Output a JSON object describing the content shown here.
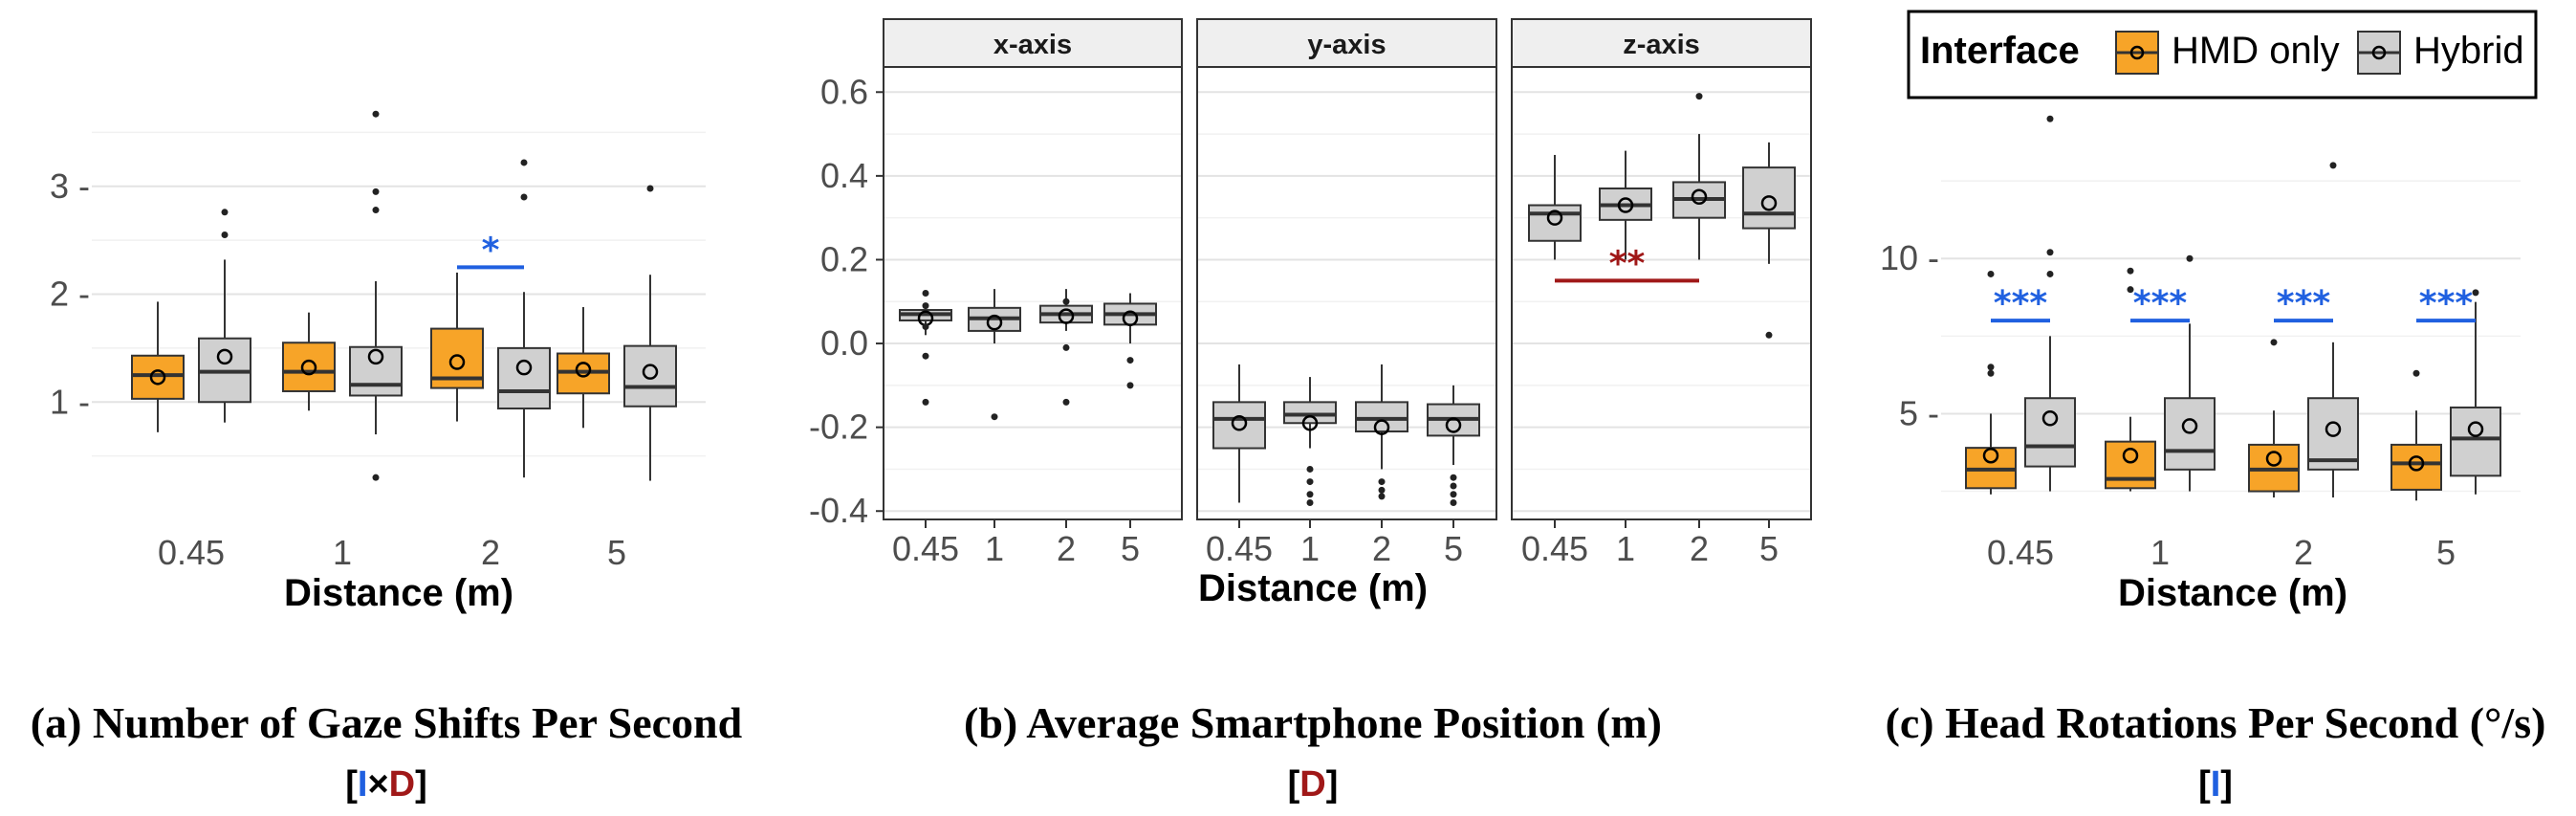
{
  "colors": {
    "hmd_only": "#f7a428",
    "hybrid": "#d0d0d0",
    "box_stroke": "#333333",
    "grid_major": "#e3e3e3",
    "grid_minor": "#f1f1f1",
    "sig_blue": "#2060e0",
    "sig_red": "#a01818"
  },
  "legend": {
    "title": "Interface",
    "items": [
      {
        "label": "HMD only",
        "key": "hmd_only"
      },
      {
        "label": "Hybrid",
        "key": "hybrid"
      }
    ]
  },
  "chart_data": [
    {
      "type": "box",
      "xlabel": "Distance (m)",
      "ylabel": "",
      "categories": [
        "0.45",
        "1",
        "2",
        "5"
      ],
      "ylim": [
        0.0,
        4.0
      ],
      "yticks": [
        1,
        2,
        3
      ],
      "grid": true,
      "caption": "(a) Number of Gaze Shifts Per Second",
      "subcaption": [
        {
          "text": "[",
          "color": "#000000"
        },
        {
          "text": "I",
          "color": "#2060e0"
        },
        {
          "text": "×",
          "color": "#000000"
        },
        {
          "text": "D",
          "color": "#a01818"
        },
        {
          "text": "]",
          "color": "#000000"
        }
      ],
      "series": [
        {
          "name": "HMD only",
          "boxes": [
            {
              "wl": 0.72,
              "q1": 1.03,
              "med": 1.25,
              "q3": 1.43,
              "wh": 1.93,
              "mean": 1.23,
              "out": []
            },
            {
              "wl": 0.92,
              "q1": 1.1,
              "med": 1.28,
              "q3": 1.55,
              "wh": 1.83,
              "mean": 1.32,
              "out": []
            },
            {
              "wl": 0.82,
              "q1": 1.13,
              "med": 1.22,
              "q3": 1.68,
              "wh": 2.2,
              "mean": 1.37,
              "out": []
            },
            {
              "wl": 0.76,
              "q1": 1.08,
              "med": 1.28,
              "q3": 1.45,
              "wh": 1.88,
              "mean": 1.3,
              "out": []
            }
          ]
        },
        {
          "name": "Hybrid",
          "boxes": [
            {
              "wl": 0.81,
              "q1": 1.0,
              "med": 1.28,
              "q3": 1.59,
              "wh": 2.32,
              "mean": 1.42,
              "out": [
                2.55,
                2.76
              ]
            },
            {
              "wl": 0.7,
              "q1": 1.06,
              "med": 1.16,
              "q3": 1.51,
              "wh": 2.12,
              "mean": 1.42,
              "out": [
                0.3,
                2.78,
                2.95,
                3.67
              ]
            },
            {
              "wl": 0.3,
              "q1": 0.94,
              "med": 1.1,
              "q3": 1.5,
              "wh": 2.02,
              "mean": 1.32,
              "out": [
                2.9,
                3.22
              ]
            },
            {
              "wl": 0.27,
              "q1": 0.96,
              "med": 1.14,
              "q3": 1.52,
              "wh": 2.18,
              "mean": 1.28,
              "out": [
                2.98
              ]
            }
          ]
        }
      ],
      "annotations": [
        {
          "text": "*",
          "category": "2",
          "y": 2.25,
          "color": "#2060e0"
        }
      ]
    },
    {
      "type": "box",
      "xlabel": "Distance (m)",
      "ylabel": "",
      "categories": [
        "0.45",
        "1",
        "2",
        "5"
      ],
      "ylim": [
        -0.42,
        0.66
      ],
      "yticks": [
        -0.4,
        -0.2,
        0.0,
        0.2,
        0.4,
        0.6
      ],
      "ytick_labels": [
        "-0.4",
        "-0.2",
        "0.0",
        "0.2",
        "0.4",
        "0.6"
      ],
      "grid": true,
      "facets": [
        "x-axis",
        "y-axis",
        "z-axis"
      ],
      "caption": "(b) Average Smartphone Position (m)",
      "subcaption": [
        {
          "text": "[",
          "color": "#000000"
        },
        {
          "text": "D",
          "color": "#a01818"
        },
        {
          "text": "]",
          "color": "#000000"
        }
      ],
      "panels": [
        {
          "facet": "x-axis",
          "boxes": [
            {
              "wl": 0.02,
              "q1": 0.055,
              "med": 0.07,
              "q3": 0.08,
              "wh": 0.09,
              "mean": 0.06,
              "out": [
                0.12,
                0.09,
                0.04,
                -0.03,
                -0.14
              ]
            },
            {
              "wl": 0.0,
              "q1": 0.03,
              "med": 0.06,
              "q3": 0.085,
              "wh": 0.13,
              "mean": 0.05,
              "out": [
                -0.175
              ]
            },
            {
              "wl": 0.03,
              "q1": 0.05,
              "med": 0.07,
              "q3": 0.09,
              "wh": 0.13,
              "mean": 0.065,
              "out": [
                0.1,
                -0.01,
                -0.14
              ]
            },
            {
              "wl": 0.0,
              "q1": 0.045,
              "med": 0.07,
              "q3": 0.095,
              "wh": 0.12,
              "mean": 0.06,
              "out": [
                -0.04,
                -0.1
              ]
            }
          ]
        },
        {
          "facet": "y-axis",
          "boxes": [
            {
              "wl": -0.38,
              "q1": -0.25,
              "med": -0.18,
              "q3": -0.14,
              "wh": -0.05,
              "mean": -0.19,
              "out": []
            },
            {
              "wl": -0.25,
              "q1": -0.19,
              "med": -0.17,
              "q3": -0.14,
              "wh": -0.08,
              "mean": -0.19,
              "out": [
                -0.3,
                -0.33,
                -0.36,
                -0.38
              ]
            },
            {
              "wl": -0.3,
              "q1": -0.21,
              "med": -0.18,
              "q3": -0.14,
              "wh": -0.05,
              "mean": -0.2,
              "out": [
                -0.33,
                -0.35,
                -0.365
              ]
            },
            {
              "wl": -0.29,
              "q1": -0.22,
              "med": -0.18,
              "q3": -0.145,
              "wh": -0.1,
              "mean": -0.195,
              "out": [
                -0.32,
                -0.34,
                -0.36,
                -0.38
              ]
            }
          ]
        },
        {
          "facet": "z-axis",
          "boxes": [
            {
              "wl": 0.2,
              "q1": 0.245,
              "med": 0.31,
              "q3": 0.33,
              "wh": 0.45,
              "mean": 0.3,
              "out": []
            },
            {
              "wl": 0.2,
              "q1": 0.295,
              "med": 0.33,
              "q3": 0.37,
              "wh": 0.46,
              "mean": 0.33,
              "out": []
            },
            {
              "wl": 0.2,
              "q1": 0.3,
              "med": 0.345,
              "q3": 0.385,
              "wh": 0.5,
              "mean": 0.35,
              "out": [
                0.59
              ]
            },
            {
              "wl": 0.19,
              "q1": 0.275,
              "med": 0.31,
              "q3": 0.42,
              "wh": 0.48,
              "mean": 0.335,
              "out": [
                0.02
              ]
            }
          ]
        }
      ],
      "annotations": [
        {
          "text": "**",
          "facet": "z-axis",
          "from": "0.45",
          "to": "2",
          "y": 0.15,
          "color": "#a01818"
        }
      ]
    },
    {
      "type": "box",
      "xlabel": "Distance (m)",
      "ylabel": "",
      "categories": [
        "0.45",
        "1",
        "2",
        "5"
      ],
      "ylim": [
        1.5,
        15.0
      ],
      "yticks": [
        5,
        10
      ],
      "ytick_labels": [
        "5 -",
        "10 -"
      ],
      "grid": true,
      "caption": "(c) Head Rotations Per Second (°/s)",
      "subcaption": [
        {
          "text": "[",
          "color": "#000000"
        },
        {
          "text": "I",
          "color": "#2060e0"
        },
        {
          "text": "]",
          "color": "#000000"
        }
      ],
      "series": [
        {
          "name": "HMD only",
          "boxes": [
            {
              "wl": 2.4,
              "q1": 2.6,
              "med": 3.2,
              "q3": 3.9,
              "wh": 5.0,
              "mean": 3.65,
              "out": [
                6.3,
                6.5,
                9.5
              ]
            },
            {
              "wl": 2.5,
              "q1": 2.6,
              "med": 2.9,
              "q3": 4.1,
              "wh": 4.9,
              "mean": 3.65,
              "out": [
                9.0,
                9.6
              ]
            },
            {
              "wl": 2.3,
              "q1": 2.5,
              "med": 3.2,
              "q3": 4.0,
              "wh": 5.1,
              "mean": 3.55,
              "out": [
                7.3
              ]
            },
            {
              "wl": 2.2,
              "q1": 2.55,
              "med": 3.4,
              "q3": 4.0,
              "wh": 5.1,
              "mean": 3.4,
              "out": [
                6.3
              ]
            }
          ]
        },
        {
          "name": "Hybrid",
          "boxes": [
            {
              "wl": 2.5,
              "q1": 3.3,
              "med": 3.95,
              "q3": 5.5,
              "wh": 7.5,
              "mean": 4.85,
              "out": [
                9.5,
                10.2,
                14.5
              ]
            },
            {
              "wl": 2.5,
              "q1": 3.2,
              "med": 3.8,
              "q3": 5.5,
              "wh": 7.9,
              "mean": 4.6,
              "out": [
                10.0
              ]
            },
            {
              "wl": 2.3,
              "q1": 3.2,
              "med": 3.5,
              "q3": 5.5,
              "wh": 7.3,
              "mean": 4.5,
              "out": [
                13.0
              ]
            },
            {
              "wl": 2.4,
              "q1": 3.0,
              "med": 4.2,
              "q3": 5.2,
              "wh": 8.6,
              "mean": 4.5,
              "out": [
                8.9
              ]
            }
          ]
        }
      ],
      "annotations": [
        {
          "text": "***",
          "category": "0.45",
          "y": 8.0,
          "color": "#2060e0"
        },
        {
          "text": "***",
          "category": "1",
          "y": 8.0,
          "color": "#2060e0"
        },
        {
          "text": "***",
          "category": "2",
          "y": 8.0,
          "color": "#2060e0"
        },
        {
          "text": "***",
          "category": "5",
          "y": 8.0,
          "color": "#2060e0"
        }
      ]
    }
  ]
}
